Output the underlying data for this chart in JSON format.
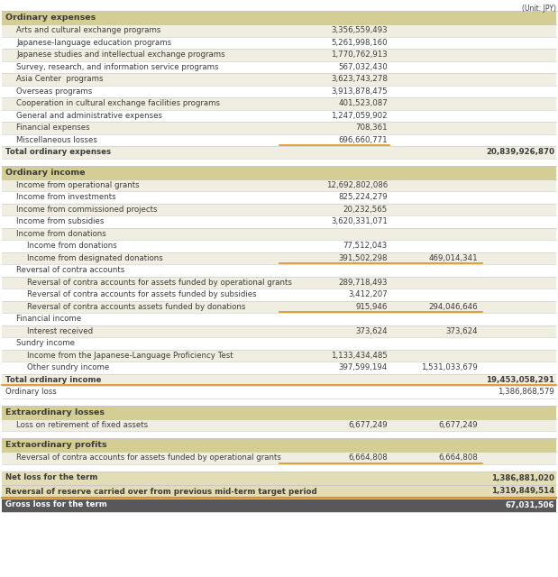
{
  "title_unit": "(Unit: JPY)",
  "sections": [
    {
      "header": "Ordinary expenses",
      "header_bg": "#d4cd94",
      "rows": [
        {
          "label": "Arts and cultural exchange programs",
          "indent": 1,
          "col1": "3,356,559,493",
          "col2": "",
          "col3": ""
        },
        {
          "label": "Japanese-language education programs",
          "indent": 1,
          "col1": "5,261,998,160",
          "col2": "",
          "col3": ""
        },
        {
          "label": "Japanese studies and intellectual exchange programs",
          "indent": 1,
          "col1": "1,770,762,913",
          "col2": "",
          "col3": ""
        },
        {
          "label": "Survey, research, and information service programs",
          "indent": 1,
          "col1": "567,032,430",
          "col2": "",
          "col3": ""
        },
        {
          "label": "Asia Center  programs",
          "indent": 1,
          "col1": "3,623,743,278",
          "col2": "",
          "col3": ""
        },
        {
          "label": "Overseas programs",
          "indent": 1,
          "col1": "3,913,878,475",
          "col2": "",
          "col3": ""
        },
        {
          "label": "Cooperation in cultural exchange facilities programs",
          "indent": 1,
          "col1": "401,523,087",
          "col2": "",
          "col3": ""
        },
        {
          "label": "General and administrative expenses",
          "indent": 1,
          "col1": "1,247,059,902",
          "col2": "",
          "col3": ""
        },
        {
          "label": "Financial expenses",
          "indent": 1,
          "col1": "708,361",
          "col2": "",
          "col3": ""
        },
        {
          "label": "Miscellaneous losses",
          "indent": 1,
          "col1": "696,660,771",
          "col2": "",
          "col3": "",
          "orange_line_after": true
        },
        {
          "label": "Total ordinary expenses",
          "indent": 0,
          "col1": "",
          "col2": "",
          "col3": "20,839,926,870",
          "bold": true
        }
      ]
    },
    {
      "header": "Ordinary income",
      "header_bg": "#d4cd94",
      "rows": [
        {
          "label": "Income from operational grants",
          "indent": 1,
          "col1": "12,692,802,086",
          "col2": "",
          "col3": ""
        },
        {
          "label": "Income from investments",
          "indent": 1,
          "col1": "825,224,279",
          "col2": "",
          "col3": ""
        },
        {
          "label": "Income from commissioned projects",
          "indent": 1,
          "col1": "20,232,565",
          "col2": "",
          "col3": ""
        },
        {
          "label": "Income from subsidies",
          "indent": 1,
          "col1": "3,620,331,071",
          "col2": "",
          "col3": ""
        },
        {
          "label": "Income from donations",
          "indent": 1,
          "col1": "",
          "col2": "",
          "col3": ""
        },
        {
          "label": "Income from donations",
          "indent": 2,
          "col1": "77,512,043",
          "col2": "",
          "col3": ""
        },
        {
          "label": "Income from designated donations",
          "indent": 2,
          "col1": "391,502,298",
          "col2": "469,014,341",
          "col3": "",
          "orange_line_after": true
        },
        {
          "label": "Reversal of contra accounts",
          "indent": 1,
          "col1": "",
          "col2": "",
          "col3": ""
        },
        {
          "label": "Reversal of contra accounts for assets funded by operational grants",
          "indent": 2,
          "col1": "289,718,493",
          "col2": "",
          "col3": ""
        },
        {
          "label": "Reversal of contra accounts for assets funded by subsidies",
          "indent": 2,
          "col1": "3,412,207",
          "col2": "",
          "col3": ""
        },
        {
          "label": "Reversal of contra accounts assets funded by donations",
          "indent": 2,
          "col1": "915,946",
          "col2": "294,046,646",
          "col3": "",
          "orange_line_after": true
        },
        {
          "label": "Financial income",
          "indent": 1,
          "col1": "",
          "col2": "",
          "col3": ""
        },
        {
          "label": "Interest received",
          "indent": 2,
          "col1": "373,624",
          "col2": "373,624",
          "col3": ""
        },
        {
          "label": "Sundry income",
          "indent": 1,
          "col1": "",
          "col2": "",
          "col3": ""
        },
        {
          "label": "Income from the Japanese-Language Proficiency Test",
          "indent": 2,
          "col1": "1,133,434,485",
          "col2": "",
          "col3": ""
        },
        {
          "label": "Other sundry income",
          "indent": 2,
          "col1": "397,599,194",
          "col2": "1,531,033,679",
          "col3": ""
        },
        {
          "label": "Total ordinary income",
          "indent": 0,
          "col1": "",
          "col2": "",
          "col3": "19,453,058,291",
          "bold": true,
          "orange_line_after": true
        },
        {
          "label": "Ordinary loss",
          "indent": 0,
          "col1": "",
          "col2": "",
          "col3": "1,386,868,579",
          "bold": false
        }
      ]
    },
    {
      "header": "Extraordinary losses",
      "header_bg": "#d4cd94",
      "rows": [
        {
          "label": "Loss on retirement of fixed assets",
          "indent": 1,
          "col1": "6,677,249",
          "col2": "6,677,249",
          "col3": ""
        }
      ]
    },
    {
      "header": "Extraordinary profits",
      "header_bg": "#d4cd94",
      "rows": [
        {
          "label": "Reversal of contra accounts for assets funded by operational grants",
          "indent": 1,
          "col1": "6,664,808",
          "col2": "6,664,808",
          "col3": "",
          "orange_line_after": true
        }
      ]
    }
  ],
  "summary_rows": [
    {
      "label": "Net loss for the term",
      "col3": "1,386,881,020",
      "bold": true,
      "bg": "#e2ddb5",
      "text_color": "#3c3c3c"
    },
    {
      "label": "Reversal of reserve carried over from previous mid-term target period",
      "col3": "1,319,849,514",
      "bold": true,
      "bg": "#e2ddb5",
      "text_color": "#3c3c3c",
      "orange_line_after": true
    },
    {
      "label": "Gross loss for the term",
      "col3": "67,031,506",
      "bold": true,
      "bg": "#595757",
      "text_color": "#ffffff"
    }
  ],
  "header_color": "#d4cd94",
  "row_bg_even": "#f0eee0",
  "row_bg_odd": "#ffffff",
  "text_color": "#3c3c3c",
  "separator_color": "#c8c8c8",
  "orange_color": "#e09020",
  "font_size": 6.2,
  "header_font_size": 6.8
}
